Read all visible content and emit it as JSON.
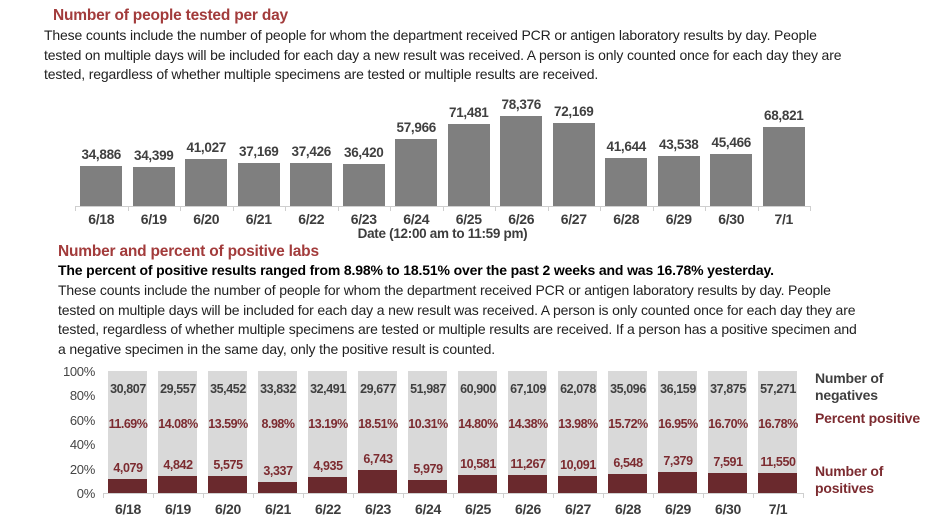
{
  "colors": {
    "heading_red": "#a23b3b",
    "bar_gray": "#7f7f7f",
    "bar_light_gray": "#d9d9d9",
    "bar_maroon": "#6a292d",
    "maroon_text": "#7c2b30",
    "dark_gray_text": "#3f3f3f"
  },
  "section1": {
    "title": "Number of people tested per day",
    "description": "These counts include the number of people for whom the department received PCR or antigen laboratory results by day. People\ntested on multiple days will be included for each day a new result was received. A person is only counted once for each day they are\ntested, regardless of whether multiple specimens are tested or multiple results are received."
  },
  "section2": {
    "title": "Number and percent of positive labs",
    "highlight": "The percent of positive results ranged from 8.98% to 18.51% over the past 2 weeks and was 16.78% yesterday.",
    "description": "These counts include the number of people for whom the department received PCR or antigen laboratory results by day. People\ntested on multiple days will be included for each day a new result was received. A person is only counted once for each day they are\ntested, regardless of whether multiple specimens are tested or multiple results are received. If a person has a positive specimen and\na negative specimen in the same day, only the positive result is counted."
  },
  "chart_data": [
    {
      "type": "bar",
      "title": "Number of people tested per day",
      "categories": [
        "6/18",
        "6/19",
        "6/20",
        "6/21",
        "6/22",
        "6/23",
        "6/24",
        "6/25",
        "6/26",
        "6/27",
        "6/28",
        "6/29",
        "6/30",
        "7/1"
      ],
      "values": [
        34886,
        34399,
        41027,
        37169,
        37426,
        36420,
        57966,
        71481,
        78376,
        72169,
        41644,
        43538,
        45466,
        68821
      ],
      "xlabel": "Date (12:00 am to 11:59 pm)",
      "ylabel": "",
      "data_labels_on": true,
      "grid": false,
      "bar_color": "#7f7f7f"
    },
    {
      "type": "bar",
      "subtype": "percent-stacked",
      "title": "Number and percent of positive labs",
      "categories": [
        "6/18",
        "6/19",
        "6/20",
        "6/21",
        "6/22",
        "6/23",
        "6/24",
        "6/25",
        "6/26",
        "6/27",
        "6/28",
        "6/29",
        "6/30",
        "7/1"
      ],
      "series": [
        {
          "name": "Number of negatives",
          "values": [
            30807,
            29557,
            35452,
            33832,
            32491,
            29677,
            51987,
            60900,
            67109,
            62078,
            35096,
            36159,
            37875,
            57271
          ]
        },
        {
          "name": "Percent positive",
          "values": [
            11.69,
            14.08,
            13.59,
            8.98,
            13.19,
            18.51,
            10.31,
            14.8,
            14.38,
            13.98,
            15.72,
            16.95,
            16.7,
            16.78
          ]
        },
        {
          "name": "Number of positives",
          "values": [
            4079,
            4842,
            5575,
            3337,
            4935,
            6743,
            5979,
            10581,
            11267,
            10091,
            6548,
            7379,
            7591,
            11550
          ]
        }
      ],
      "ylim": [
        0,
        100
      ],
      "yticks": [
        "100%",
        "80%",
        "60%",
        "40%",
        "20%",
        "0%"
      ],
      "grid": false,
      "legend_position": "right"
    }
  ]
}
